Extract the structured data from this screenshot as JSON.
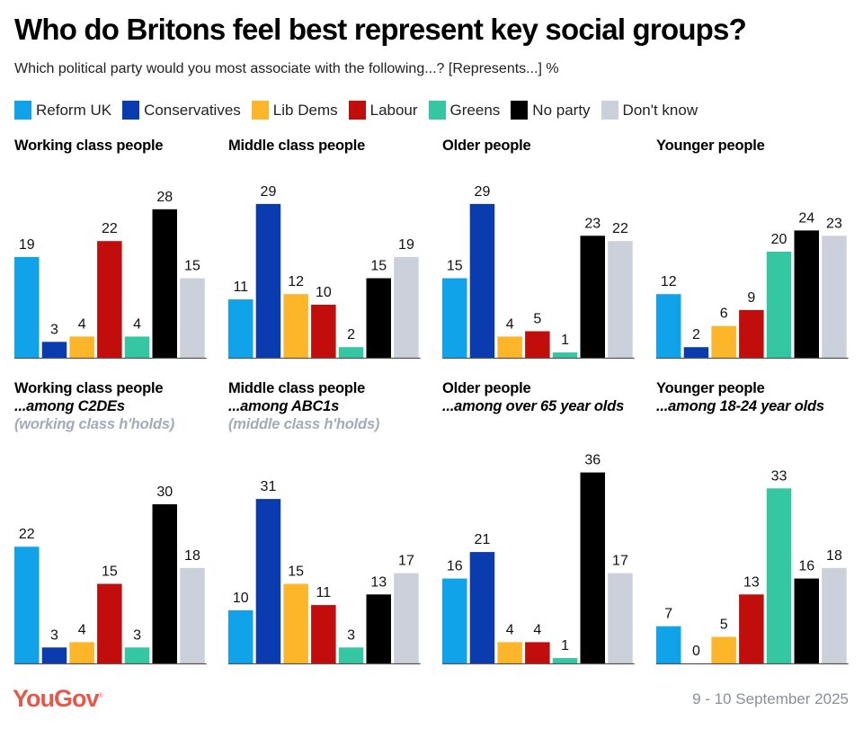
{
  "title": "Who do Britons feel best represent key social groups?",
  "subtitle": "Which political party would you most associate with the following...? [Represents...] %",
  "footer": {
    "brand": "YouGov",
    "date": "9 - 10 September 2025"
  },
  "legend": [
    {
      "name": "Reform UK",
      "color": "#10a3e9"
    },
    {
      "name": "Conservatives",
      "color": "#0a3caf"
    },
    {
      "name": "Lib Dems",
      "color": "#fdb62a"
    },
    {
      "name": "Labour",
      "color": "#c20d0d"
    },
    {
      "name": "Greens",
      "color": "#34c7a2"
    },
    {
      "name": "No party",
      "color": "#000000"
    },
    {
      "name": "Don't know",
      "color": "#ccd0db"
    }
  ],
  "chart_data": [
    {
      "type": "bar",
      "title": "Working class people",
      "subtitle": "",
      "note": "",
      "categories": [
        "Reform UK",
        "Conservatives",
        "Lib Dems",
        "Labour",
        "Greens",
        "No party",
        "Don't know"
      ],
      "values": [
        19,
        3,
        4,
        22,
        4,
        28,
        15
      ],
      "ylim": [
        0,
        36
      ]
    },
    {
      "type": "bar",
      "title": "Middle class people",
      "subtitle": "",
      "note": "",
      "categories": [
        "Reform UK",
        "Conservatives",
        "Lib Dems",
        "Labour",
        "Greens",
        "No party",
        "Don't know"
      ],
      "values": [
        11,
        29,
        12,
        10,
        2,
        15,
        19
      ],
      "ylim": [
        0,
        36
      ]
    },
    {
      "type": "bar",
      "title": "Older people",
      "subtitle": "",
      "note": "",
      "categories": [
        "Reform UK",
        "Conservatives",
        "Lib Dems",
        "Labour",
        "Greens",
        "No party",
        "Don't know"
      ],
      "values": [
        15,
        29,
        4,
        5,
        1,
        23,
        22
      ],
      "ylim": [
        0,
        36
      ]
    },
    {
      "type": "bar",
      "title": "Younger people",
      "subtitle": "",
      "note": "",
      "categories": [
        "Reform UK",
        "Conservatives",
        "Lib Dems",
        "Labour",
        "Greens",
        "No party",
        "Don't know"
      ],
      "values": [
        12,
        2,
        6,
        9,
        20,
        24,
        23
      ],
      "ylim": [
        0,
        36
      ]
    },
    {
      "type": "bar",
      "title": "Working class people",
      "subtitle": "...among C2DEs",
      "note": "(working class h'holds)",
      "categories": [
        "Reform UK",
        "Conservatives",
        "Lib Dems",
        "Labour",
        "Greens",
        "No party",
        "Don't know"
      ],
      "values": [
        22,
        3,
        4,
        15,
        3,
        30,
        18
      ],
      "ylim": [
        0,
        36
      ]
    },
    {
      "type": "bar",
      "title": "Middle class people",
      "subtitle": "...among ABC1s",
      "note": "(middle class h'holds)",
      "categories": [
        "Reform UK",
        "Conservatives",
        "Lib Dems",
        "Labour",
        "Greens",
        "No party",
        "Don't know"
      ],
      "values": [
        10,
        31,
        15,
        11,
        3,
        13,
        17
      ],
      "ylim": [
        0,
        36
      ]
    },
    {
      "type": "bar",
      "title": "Older people",
      "subtitle": "...among over 65 year olds",
      "note": "",
      "categories": [
        "Reform UK",
        "Conservatives",
        "Lib Dems",
        "Labour",
        "Greens",
        "No party",
        "Don't know"
      ],
      "values": [
        16,
        21,
        4,
        4,
        1,
        36,
        17
      ],
      "ylim": [
        0,
        36
      ]
    },
    {
      "type": "bar",
      "title": "Younger people",
      "subtitle": "...among 18-24 year olds",
      "note": "",
      "categories": [
        "Reform UK",
        "Conservatives",
        "Lib Dems",
        "Labour",
        "Greens",
        "No party",
        "Don't know"
      ],
      "values": [
        7,
        0,
        5,
        13,
        33,
        16,
        18
      ],
      "ylim": [
        0,
        36
      ]
    }
  ]
}
